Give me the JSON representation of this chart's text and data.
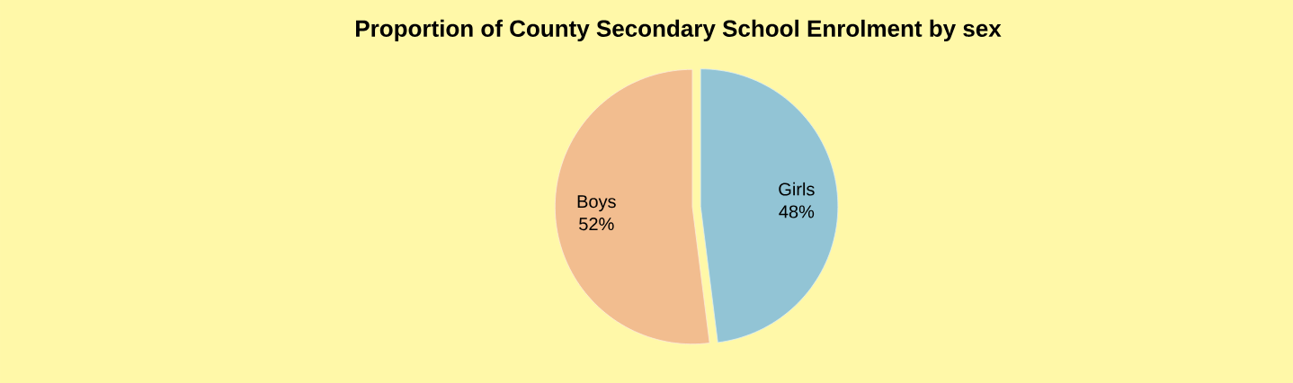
{
  "chart_data": {
    "type": "pie",
    "title": "Proportion of County Secondary School  Enrolment by sex",
    "categories": [
      "Girls",
      "Boys"
    ],
    "values": [
      48,
      52
    ],
    "colors": [
      "#92c4d5",
      "#f2bd8f"
    ],
    "value_labels": [
      "48%",
      "52%"
    ]
  }
}
